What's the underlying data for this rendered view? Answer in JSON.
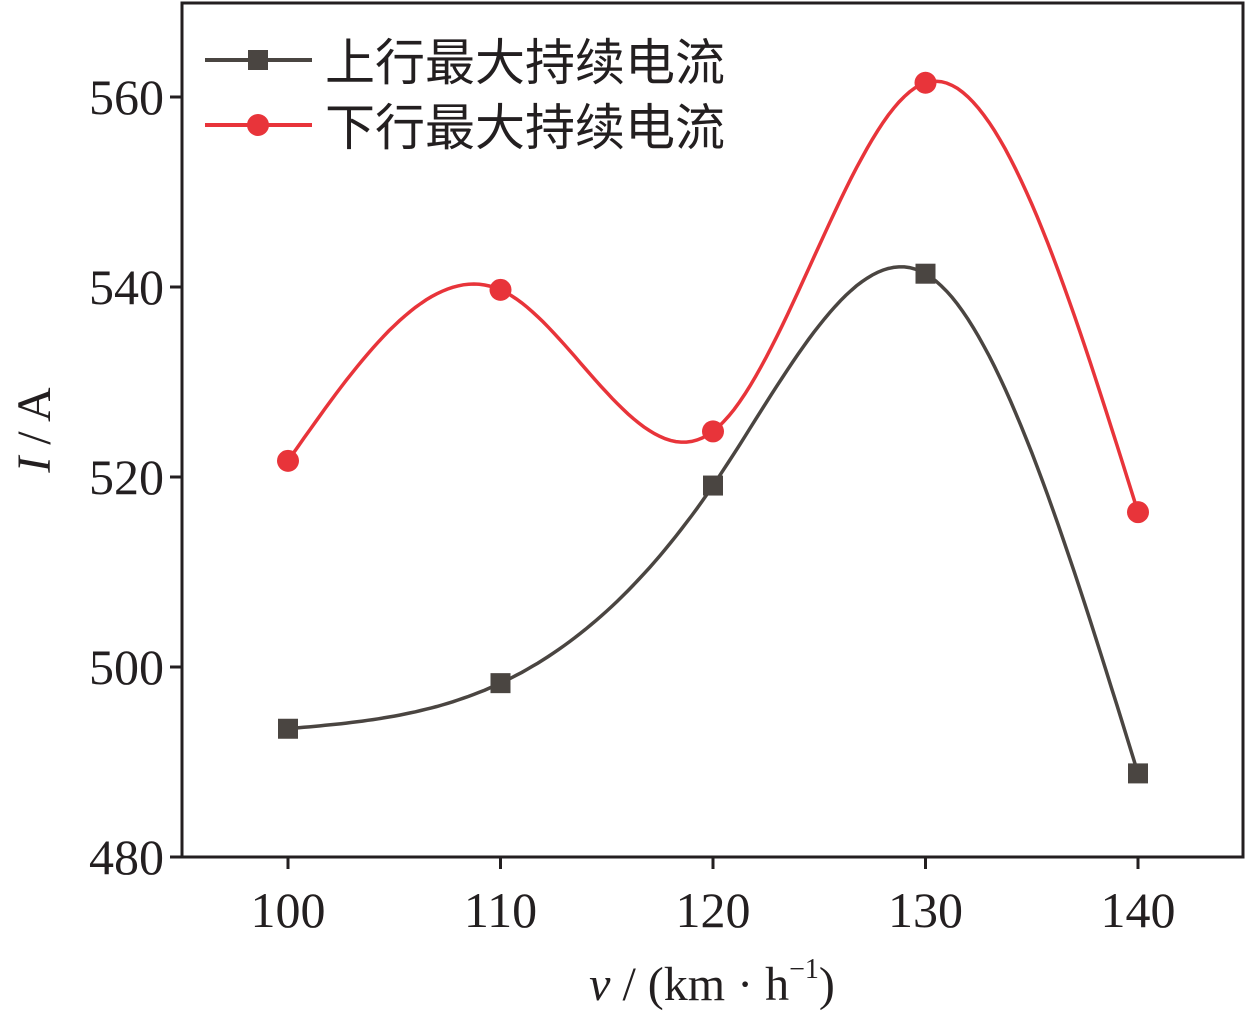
{
  "chart_data": {
    "type": "line",
    "title": "",
    "xlabel": {
      "var": "v",
      "unit": " / (km · h",
      "sup": "−1",
      "close": ")"
    },
    "ylabel": {
      "var": "I",
      "unit": " / A"
    },
    "x": [
      100,
      110,
      120,
      130,
      140
    ],
    "x_ticks": [
      "100",
      "110",
      "120",
      "130",
      "140"
    ],
    "y_ticks": [
      "480",
      "500",
      "520",
      "540",
      "560"
    ],
    "xlim": [
      95,
      145
    ],
    "ylim": [
      480,
      570
    ],
    "grid": false,
    "legend_position": "top-left",
    "smooth": true,
    "series": [
      {
        "name": "上行最大持续电流",
        "marker": "square",
        "color": "#4a4541",
        "values": [
          493.5,
          498.3,
          519.1,
          541.4,
          488.8
        ]
      },
      {
        "name": "下行最大持续电流",
        "marker": "circle",
        "color": "#e8343a",
        "values": [
          521.7,
          539.7,
          524.8,
          561.5,
          516.3
        ]
      }
    ]
  }
}
